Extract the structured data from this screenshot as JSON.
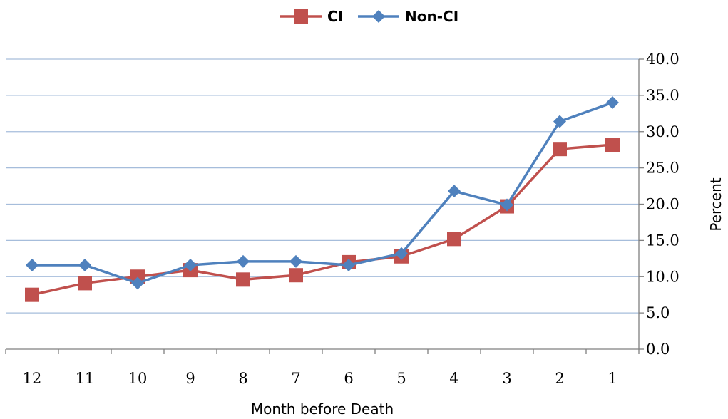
{
  "chart_data": {
    "type": "line",
    "title": "",
    "xlabel": "Month before Death",
    "ylabel": "Percent",
    "categories": [
      "12",
      "11",
      "10",
      "9",
      "8",
      "7",
      "6",
      "5",
      "4",
      "3",
      "2",
      "1"
    ],
    "ylim": [
      0,
      40
    ],
    "yticks": [
      "0.0",
      "5.0",
      "10.0",
      "15.0",
      "20.0",
      "25.0",
      "30.0",
      "35.0",
      "40.0"
    ],
    "y_axis_side": "right",
    "grid": true,
    "legend_position": "top-center",
    "series": [
      {
        "name": "CI",
        "color": "#c0504d",
        "marker": "square",
        "values": [
          7.5,
          9.1,
          10.0,
          10.9,
          9.6,
          10.2,
          12.0,
          12.8,
          15.2,
          19.7,
          27.6,
          28.2
        ]
      },
      {
        "name": "Non-CI",
        "color": "#4f81bd",
        "marker": "diamond",
        "values": [
          11.6,
          11.6,
          9.1,
          11.6,
          12.1,
          12.1,
          11.6,
          13.2,
          21.8,
          19.9,
          31.4,
          34.0
        ]
      }
    ]
  },
  "colors": {
    "gridline": "#a6bddb",
    "axis": "#7f7f7f"
  }
}
